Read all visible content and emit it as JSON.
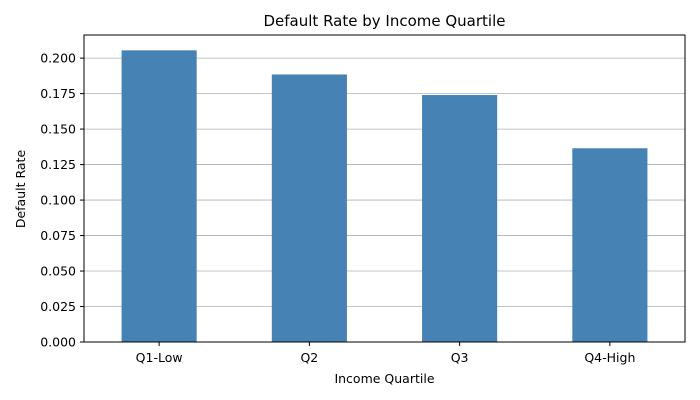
{
  "chart_data": {
    "type": "bar",
    "title": "Default Rate by Income Quartile",
    "xlabel": "Income Quartile",
    "ylabel": "Default Rate",
    "categories": [
      "Q1-Low",
      "Q2",
      "Q3",
      "Q4-High"
    ],
    "values": [
      0.2055,
      0.1885,
      0.174,
      0.1365
    ],
    "ylim": [
      0,
      0.2163
    ],
    "yticks": [
      0.0,
      0.025,
      0.05,
      0.075,
      0.1,
      0.125,
      0.15,
      0.175,
      0.2
    ],
    "ytick_labels": [
      "0.000",
      "0.025",
      "0.050",
      "0.075",
      "0.100",
      "0.125",
      "0.150",
      "0.175",
      "0.200"
    ],
    "grid": "y-axis",
    "bar_color": "#4682b4",
    "grid_color": "#b0b0b0"
  }
}
